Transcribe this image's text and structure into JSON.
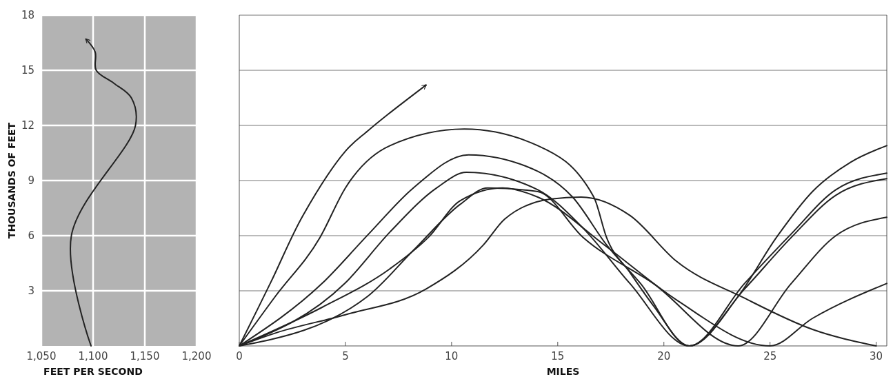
{
  "chart_data": [
    {
      "type": "line",
      "xlabel": "FEET PER SECOND",
      "ylabel": "THOUSANDS OF FEET",
      "xlim": [
        1050,
        1200
      ],
      "ylim": [
        0,
        18
      ],
      "xticks": [
        {
          "value": 1050,
          "label": "1,050"
        },
        {
          "value": 1100,
          "label": "1,100"
        },
        {
          "value": 1150,
          "label": "1,150"
        },
        {
          "value": 1200,
          "label": "1,200"
        }
      ],
      "yticks": [
        3,
        6,
        9,
        12,
        15,
        18
      ],
      "grid": true,
      "marker": "none",
      "line_style": "solid",
      "series": [
        {
          "color": "#222222",
          "x": [
            1098,
            1079,
            1141,
            1137,
            1120,
            1103,
            1102,
            1093
          ],
          "values": [
            0,
            6,
            12,
            13.5,
            14.3,
            15,
            16,
            16.7
          ]
        }
      ]
    },
    {
      "type": "line",
      "xlabel": "MILES",
      "xlim": [
        0,
        30.5
      ],
      "ylim": [
        0,
        18
      ],
      "xticks": [
        0,
        5,
        10,
        15,
        20,
        25,
        30
      ],
      "yticks": [
        3,
        6,
        9,
        12,
        15,
        18
      ],
      "grid": "y",
      "tick_labels": "x",
      "marker": "none",
      "line_style": "solid",
      "series": [
        {
          "color": "#222222",
          "x": [
            0,
            1.5,
            3,
            5,
            6.05,
            7,
            8.8
          ],
          "values": [
            0,
            3.5,
            7.1,
            10.6,
            11.7,
            12.6,
            14.2
          ]
        },
        {
          "color": "#222222",
          "x": [
            0,
            1.7,
            3.8,
            5,
            7.1,
            10.6,
            14.06,
            16.7,
            17.3,
            18.4,
            19.5,
            21.2,
            23.5,
            25.3,
            27,
            28.8,
            30.5
          ],
          "values": [
            0,
            2.7,
            5.9,
            8.6,
            10.9,
            11.8,
            10.9,
            8.1,
            5.9,
            4,
            2.2,
            0,
            2.7,
            5.9,
            8.4,
            10,
            10.9
          ]
        },
        {
          "color": "#222222",
          "x": [
            0,
            3.9,
            6.1,
            8.2,
            10.8,
            14.06,
            15.7,
            17.3,
            18.9,
            21.2,
            23.8,
            26,
            28.1,
            30.5
          ],
          "values": [
            0,
            3.4,
            6.1,
            8.6,
            10.4,
            9.5,
            8.1,
            5.5,
            3.4,
            0,
            3.4,
            6.1,
            8.5,
            9.4
          ]
        },
        {
          "color": "#222222",
          "x": [
            0,
            4.97,
            7.1,
            9.3,
            10.7,
            14.06,
            16.2,
            18.4,
            21.2,
            23.8,
            26,
            28.1,
            30.5
          ],
          "values": [
            0,
            3.4,
            6.2,
            8.6,
            9.45,
            8.5,
            6.4,
            3.4,
            0,
            3.1,
            5.9,
            8.2,
            9.1
          ]
        },
        {
          "color": "#222222",
          "x": [
            0,
            6.05,
            8.2,
            10.4,
            11.7,
            14.06,
            16.2,
            19.5,
            23.5,
            26,
            28.1,
            30.5
          ],
          "values": [
            0,
            2.7,
            5.2,
            7.7,
            8.6,
            8.4,
            5.9,
            3.4,
            0,
            3.4,
            6,
            7
          ]
        },
        {
          "color": "#222222",
          "x": [
            0,
            3.9,
            7.1,
            8.9,
            10.4,
            12.4,
            14.06,
            17.3,
            20.6,
            25,
            27,
            30.5
          ],
          "values": [
            0,
            2.1,
            4.2,
            5.9,
            7.9,
            8.6,
            8.1,
            5.4,
            2.5,
            0,
            1.5,
            3.4
          ]
        },
        {
          "color": "#222222",
          "x": [
            0,
            1.7,
            5,
            8.8,
            11.5,
            12.5,
            14.7,
            16.1,
            18.4,
            20.6,
            23.8,
            27,
            30
          ],
          "values": [
            0,
            0.7,
            1.7,
            3.1,
            5.5,
            6.9,
            8,
            8.1,
            7.1,
            4.6,
            2.6,
            0.9,
            0
          ]
        }
      ]
    }
  ]
}
